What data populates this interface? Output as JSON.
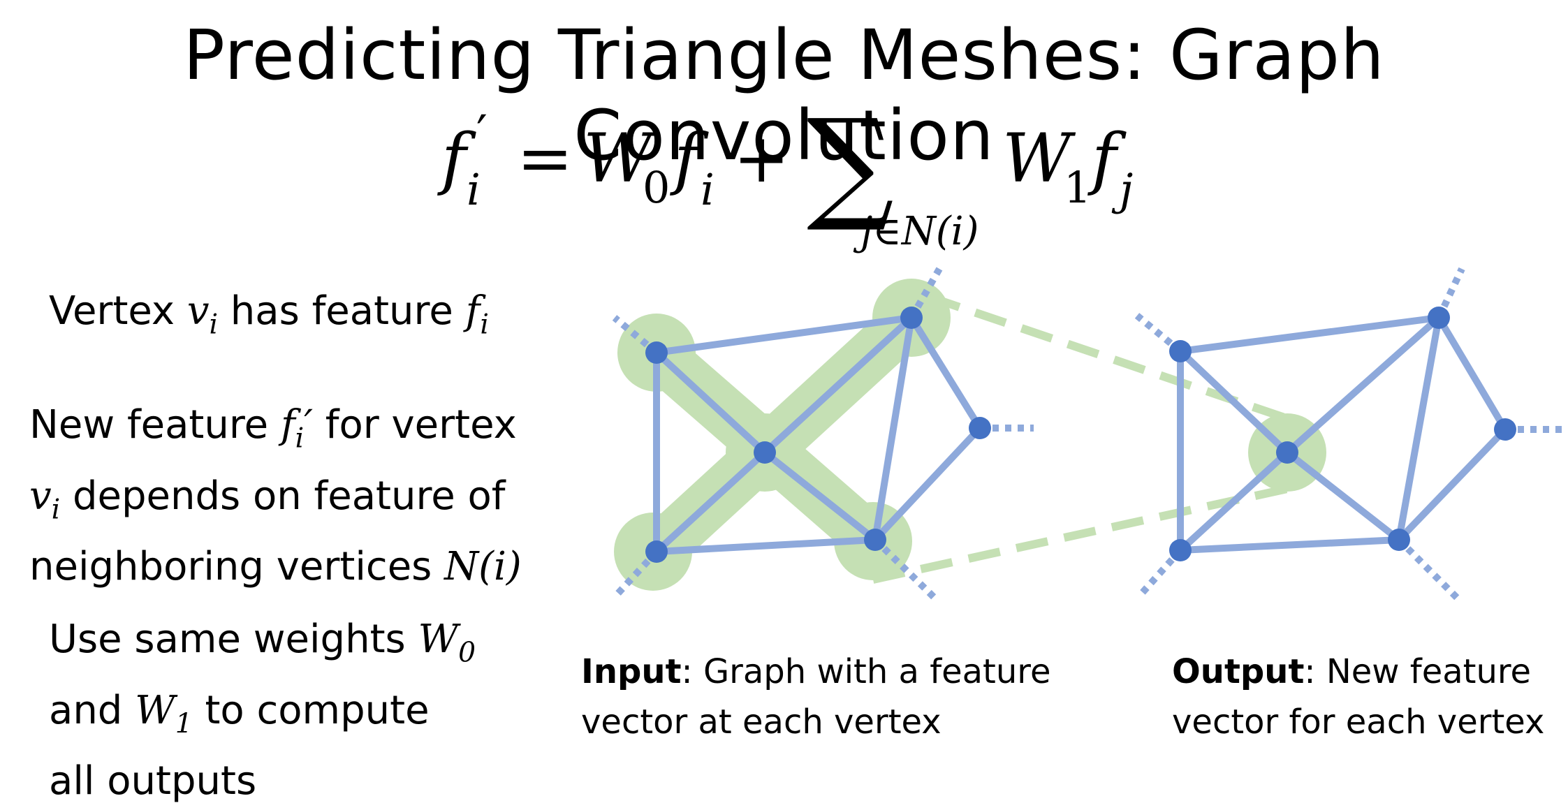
{
  "title": "Predicting Triangle Meshes: Graph Convolution",
  "formula": {
    "lhs": "f",
    "lhs_sub": "i",
    "lhs_prime": "′",
    "equals": "=",
    "w0": "W",
    "w0_sub": "0",
    "f_i": "f",
    "f_i_sub": "i",
    "plus": "+",
    "sum": "∑",
    "sum_sub": "j∈N(i)",
    "w1": "W",
    "w1_sub": "1",
    "f_j": "f",
    "f_j_sub": "j"
  },
  "left_text": {
    "p1": {
      "a": "Vertex ",
      "v": "v",
      "v_sub": "i",
      "b": " has feature ",
      "f": "f",
      "f_sub": "i"
    },
    "p2": {
      "a": "New feature ",
      "f": "f",
      "f_sub": "i",
      "prime": "′",
      "b": " for vertex",
      "v": "v",
      "v_sub": "i",
      "c": " depends on feature of",
      "d": "neighboring vertices ",
      "n": "N(i)"
    },
    "p3": {
      "a": "Use same weights ",
      "w0": "W",
      "w0_sub": "0",
      "b": "and ",
      "w1": "W",
      "w1_sub": "1",
      "c": " to compute",
      "d": "all outputs"
    }
  },
  "captions": {
    "input_bold": "Input",
    "input_rest": ": Graph with a feature",
    "input_line2": "vector at each vertex",
    "output_bold": "Output",
    "output_rest": ": New feature",
    "output_line2": "vector for each vertex"
  },
  "colors": {
    "edge": "#8EA9DB",
    "vertex": "#4472C4",
    "highlight": "#C5E0B4",
    "dashed": "#C5E0B4"
  }
}
